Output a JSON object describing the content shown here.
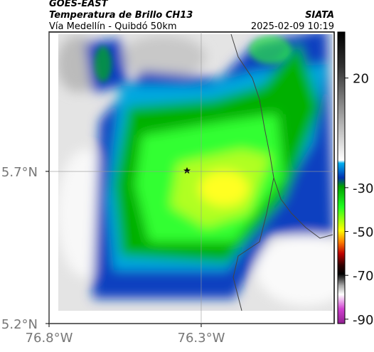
{
  "header": {
    "satellite": "GOES-EAST",
    "title": "Temperatura de Brillo CH13",
    "subtitle": "Vía Medellín - Quibdó 50km",
    "source": "SIATA",
    "datetime": "2025-02-09 10:19"
  },
  "map": {
    "xlim": [
      -76.8,
      -75.863
    ],
    "ylim": [
      5.2,
      6.158
    ],
    "xticks": [
      {
        "value": -76.8,
        "label": "76.8°W"
      },
      {
        "value": -76.3,
        "label": "76.3°W"
      }
    ],
    "yticks": [
      {
        "value": 5.2,
        "label": "5.2°N"
      },
      {
        "value": 5.7,
        "label": "5.7°N"
      }
    ]
  },
  "colorbar": {
    "clim": [
      -92,
      41
    ],
    "ticks": [
      20,
      -30,
      -50,
      -70,
      -90
    ]
  }
}
